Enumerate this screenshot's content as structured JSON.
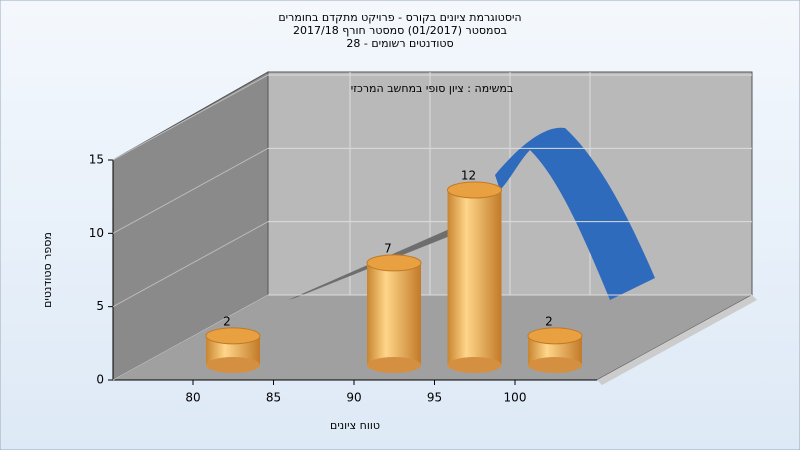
{
  "chart_data": {
    "type": "bar",
    "title": [
      "היסטוגרמת ציונים בקורס - פרויקט מתקדם בחומרים",
      "בסמסטר  (01/2017)  סמסטר חורף 2017/18",
      "סטודנטים רשומים - 28"
    ],
    "annotation": "במשימה : ציון סופי במחשב המרכזי",
    "y_label": "מספר סטודנטים",
    "x_label": "טווח ציונים",
    "categories": [
      "80",
      "85",
      "90",
      "95",
      "100"
    ],
    "values": [
      2,
      0,
      7,
      12,
      2
    ],
    "color": "#e8a040",
    "ylim": [
      0,
      15
    ],
    "yticks": [
      0,
      5,
      10,
      15
    ],
    "grid": true
  }
}
